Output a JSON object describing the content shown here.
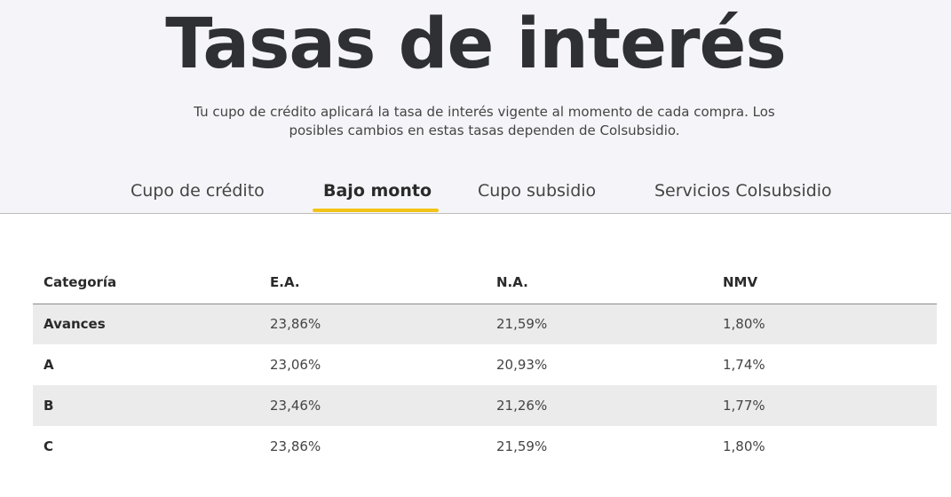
{
  "header": {
    "title": "Tasas de interés",
    "subtitle_line1": "Tu cupo de crédito aplicará la tasa de interés vigente al momento de cada compra. Los",
    "subtitle_line2": "posibles cambios en estas tasas dependen de Colsubsidio."
  },
  "tabs": [
    {
      "label": "Cupo de crédito",
      "active": false
    },
    {
      "label": "Bajo monto",
      "active": true
    },
    {
      "label": "Cupo subsidio",
      "active": false
    },
    {
      "label": "Servicios Colsubsidio",
      "active": false
    }
  ],
  "colors": {
    "accent": "#f2c318",
    "hero_bg": "#f5f5f9",
    "row_shade": "#ebebeb"
  },
  "table": {
    "headers": [
      "Categoría",
      "E.A.",
      "N.A.",
      "NMV"
    ],
    "rows": [
      [
        "Avances",
        "23,86%",
        "21,59%",
        "1,80%"
      ],
      [
        "A",
        "23,06%",
        "20,93%",
        "1,74%"
      ],
      [
        "B",
        "23,46%",
        "21,26%",
        "1,77%"
      ],
      [
        "C",
        "23,86%",
        "21,59%",
        "1,80%"
      ]
    ]
  }
}
